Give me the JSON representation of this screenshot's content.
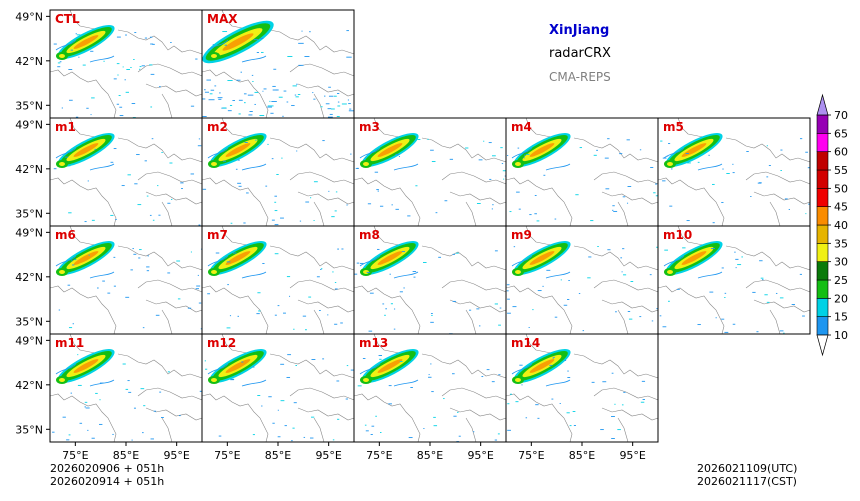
{
  "chart_data": {
    "type": "heatmap",
    "title": "XinJiang radarCRX CMA-REPS",
    "region": "XinJiang",
    "product": "radarCRX",
    "model": "CMA-REPS",
    "panels": [
      "CTL",
      "MAX",
      "m1",
      "m2",
      "m3",
      "m4",
      "m5",
      "m6",
      "m7",
      "m8",
      "m9",
      "m10",
      "m11",
      "m12",
      "m13",
      "m14"
    ],
    "lat_ticks": [
      "49°N",
      "42°N",
      "35°N"
    ],
    "lat_values": [
      49,
      42,
      35
    ],
    "lon_ticks": [
      "75°E",
      "85°E",
      "95°E"
    ],
    "lon_values": [
      75,
      85,
      95
    ],
    "lon_range": [
      70,
      100
    ],
    "lat_range": [
      33,
      50
    ],
    "colorbar": {
      "levels": [
        10,
        15,
        20,
        25,
        30,
        35,
        40,
        45,
        50,
        55,
        60,
        65,
        70
      ],
      "colors": [
        "#1e96f0",
        "#00d2e6",
        "#14be14",
        "#0a7a0a",
        "#f0f014",
        "#e6b400",
        "#fa8c00",
        "#f00000",
        "#d20000",
        "#c00000",
        "#ff00f0",
        "#9600b4",
        "#ad90f0"
      ]
    },
    "init_time_utc": "2026020906  +  051h",
    "init_time_cst": "2026020914  +  051h",
    "valid_time_utc": "2026021109(UTC)",
    "valid_time_cst": "2026021117(CST)"
  }
}
